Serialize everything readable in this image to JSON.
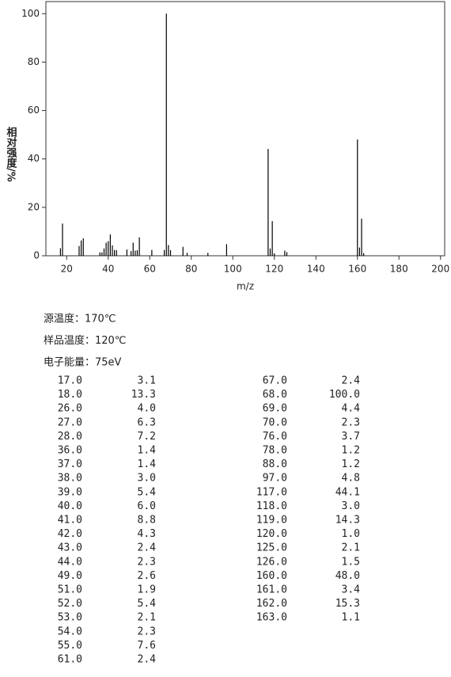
{
  "chart_data": {
    "type": "bar",
    "xlabel": "m/z",
    "ylabel": "相对强度/%",
    "x": [
      17,
      18,
      26,
      27,
      28,
      36,
      37,
      38,
      39,
      40,
      41,
      42,
      43,
      44,
      49,
      51,
      52,
      53,
      54,
      55,
      61,
      67,
      68,
      69,
      70,
      76,
      78,
      88,
      97,
      117,
      118,
      119,
      120,
      125,
      126,
      160,
      161,
      162,
      163
    ],
    "values": [
      3.1,
      13.3,
      4.0,
      6.3,
      7.2,
      1.4,
      1.4,
      3.0,
      5.4,
      6.0,
      8.8,
      4.3,
      2.4,
      2.3,
      2.6,
      1.9,
      5.4,
      2.1,
      2.3,
      7.6,
      2.4,
      2.4,
      100.0,
      4.4,
      2.3,
      3.7,
      1.2,
      1.2,
      4.8,
      44.1,
      3.0,
      14.3,
      1.0,
      2.1,
      1.5,
      48.0,
      3.4,
      15.3,
      1.1
    ],
    "color": "#000000",
    "xlim": [
      10,
      202
    ],
    "xticks": [
      20,
      40,
      60,
      80,
      100,
      120,
      140,
      160,
      180,
      200
    ],
    "ylim": [
      0,
      105
    ],
    "yticks": [
      0,
      20,
      40,
      60,
      80,
      100
    ]
  },
  "conditions": [
    "源温度：170℃",
    "样品温度：120℃",
    "电子能量：75eV"
  ],
  "table": {
    "left": [
      [
        "17.0",
        "3.1"
      ],
      [
        "18.0",
        "13.3"
      ],
      [
        "26.0",
        "4.0"
      ],
      [
        "27.0",
        "6.3"
      ],
      [
        "28.0",
        "7.2"
      ],
      [
        "36.0",
        "1.4"
      ],
      [
        "37.0",
        "1.4"
      ],
      [
        "38.0",
        "3.0"
      ],
      [
        "39.0",
        "5.4"
      ],
      [
        "40.0",
        "6.0"
      ],
      [
        "41.0",
        "8.8"
      ],
      [
        "42.0",
        "4.3"
      ],
      [
        "43.0",
        "2.4"
      ],
      [
        "44.0",
        "2.3"
      ],
      [
        "49.0",
        "2.6"
      ],
      [
        "51.0",
        "1.9"
      ],
      [
        "52.0",
        "5.4"
      ],
      [
        "53.0",
        "2.1"
      ],
      [
        "54.0",
        "2.3"
      ],
      [
        "55.0",
        "7.6"
      ],
      [
        "61.0",
        "2.4"
      ]
    ],
    "right": [
      [
        "67.0",
        "2.4"
      ],
      [
        "68.0",
        "100.0"
      ],
      [
        "69.0",
        "4.4"
      ],
      [
        "70.0",
        "2.3"
      ],
      [
        "76.0",
        "3.7"
      ],
      [
        "78.0",
        "1.2"
      ],
      [
        "88.0",
        "1.2"
      ],
      [
        "97.0",
        "4.8"
      ],
      [
        "117.0",
        "44.1"
      ],
      [
        "118.0",
        "3.0"
      ],
      [
        "119.0",
        "14.3"
      ],
      [
        "120.0",
        "1.0"
      ],
      [
        "125.0",
        "2.1"
      ],
      [
        "126.0",
        "1.5"
      ],
      [
        "160.0",
        "48.0"
      ],
      [
        "161.0",
        "3.4"
      ],
      [
        "162.0",
        "15.3"
      ],
      [
        "163.0",
        "1.1"
      ]
    ]
  }
}
